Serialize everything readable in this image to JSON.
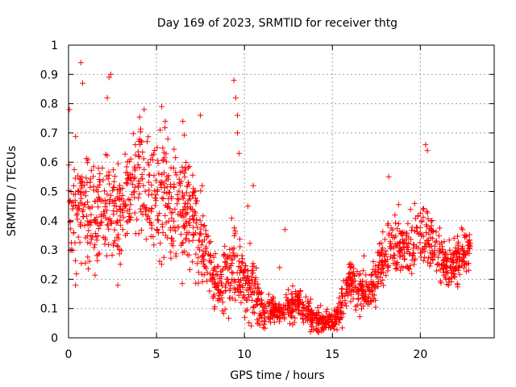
{
  "chart_data": {
    "type": "scatter",
    "title": "Day 169 of 2023, SRMTID for receiver thtg",
    "xlabel": "GPS time / hours",
    "ylabel": "SRMTID / TECUs",
    "xlim": [
      0,
      24.2
    ],
    "ylim": [
      0,
      1
    ],
    "xticks": [
      0,
      5,
      10,
      15,
      20
    ],
    "xtick_labels": [
      "0",
      "5",
      "10",
      "15",
      "20"
    ],
    "yticks": [
      0,
      0.1,
      0.2,
      0.3,
      0.4,
      0.5,
      0.6,
      0.7,
      0.8,
      0.9,
      1
    ],
    "ytick_labels": [
      "0",
      "0.1",
      "0.2",
      "0.3",
      "0.4",
      "0.5",
      "0.6",
      "0.7",
      "0.8",
      "0.9",
      "1"
    ],
    "grid": true,
    "marker": "plus",
    "color": "#ff0000",
    "series": [
      {
        "name": "SRMTID",
        "profile": [
          [
            0.0,
            0.45,
            0.14
          ],
          [
            0.5,
            0.45,
            0.12
          ],
          [
            1.0,
            0.45,
            0.12
          ],
          [
            1.5,
            0.42,
            0.12
          ],
          [
            2.0,
            0.45,
            0.12
          ],
          [
            2.5,
            0.42,
            0.12
          ],
          [
            3.0,
            0.42,
            0.12
          ],
          [
            3.5,
            0.5,
            0.14
          ],
          [
            4.0,
            0.55,
            0.14
          ],
          [
            4.5,
            0.5,
            0.14
          ],
          [
            5.0,
            0.5,
            0.15
          ],
          [
            5.5,
            0.48,
            0.15
          ],
          [
            6.0,
            0.47,
            0.14
          ],
          [
            6.5,
            0.43,
            0.14
          ],
          [
            7.0,
            0.4,
            0.13
          ],
          [
            7.5,
            0.33,
            0.1
          ],
          [
            8.0,
            0.24,
            0.08
          ],
          [
            8.5,
            0.18,
            0.06
          ],
          [
            9.0,
            0.22,
            0.1
          ],
          [
            9.5,
            0.26,
            0.11
          ],
          [
            10.0,
            0.2,
            0.09
          ],
          [
            10.5,
            0.17,
            0.08
          ],
          [
            11.0,
            0.1,
            0.04
          ],
          [
            11.5,
            0.09,
            0.03
          ],
          [
            12.0,
            0.09,
            0.03
          ],
          [
            12.5,
            0.11,
            0.04
          ],
          [
            13.0,
            0.11,
            0.04
          ],
          [
            13.5,
            0.1,
            0.04
          ],
          [
            14.0,
            0.06,
            0.03
          ],
          [
            14.5,
            0.06,
            0.03
          ],
          [
            15.0,
            0.05,
            0.02
          ],
          [
            15.5,
            0.1,
            0.04
          ],
          [
            16.0,
            0.2,
            0.05
          ],
          [
            16.5,
            0.17,
            0.05
          ],
          [
            17.0,
            0.14,
            0.05
          ],
          [
            17.5,
            0.2,
            0.06
          ],
          [
            18.0,
            0.3,
            0.07
          ],
          [
            18.5,
            0.33,
            0.08
          ],
          [
            19.0,
            0.3,
            0.07
          ],
          [
            19.5,
            0.3,
            0.07
          ],
          [
            20.0,
            0.36,
            0.08
          ],
          [
            20.5,
            0.36,
            0.07
          ],
          [
            21.0,
            0.28,
            0.06
          ],
          [
            21.5,
            0.24,
            0.05
          ],
          [
            22.0,
            0.26,
            0.06
          ],
          [
            22.5,
            0.3,
            0.06
          ],
          [
            22.8,
            0.33,
            0.06
          ]
        ],
        "peaks": [
          [
            0.05,
            0.78
          ],
          [
            0.7,
            0.94
          ],
          [
            0.8,
            0.87
          ],
          [
            2.3,
            0.89
          ],
          [
            2.4,
            0.9
          ],
          [
            2.2,
            0.82
          ],
          [
            4.3,
            0.78
          ],
          [
            5.3,
            0.79
          ],
          [
            5.5,
            0.74
          ],
          [
            6.5,
            0.74
          ],
          [
            7.5,
            0.76
          ],
          [
            9.4,
            0.88
          ],
          [
            9.5,
            0.82
          ],
          [
            9.6,
            0.76
          ],
          [
            9.6,
            0.7
          ],
          [
            9.7,
            0.63
          ],
          [
            10.5,
            0.52
          ],
          [
            12.3,
            0.37
          ],
          [
            18.2,
            0.55
          ],
          [
            20.3,
            0.66
          ],
          [
            20.4,
            0.64
          ],
          [
            0.4,
            0.18
          ],
          [
            2.8,
            0.18
          ],
          [
            14.2,
            0.02
          ],
          [
            15.1,
            0.03
          ],
          [
            7.6,
            0.52
          ],
          [
            10.2,
            0.45
          ],
          [
            12.0,
            0.24
          ],
          [
            13.5,
            0.14
          ],
          [
            16.8,
            0.28
          ]
        ],
        "x_range": [
          0.0,
          22.85
        ],
        "point_count": 1800
      }
    ]
  }
}
